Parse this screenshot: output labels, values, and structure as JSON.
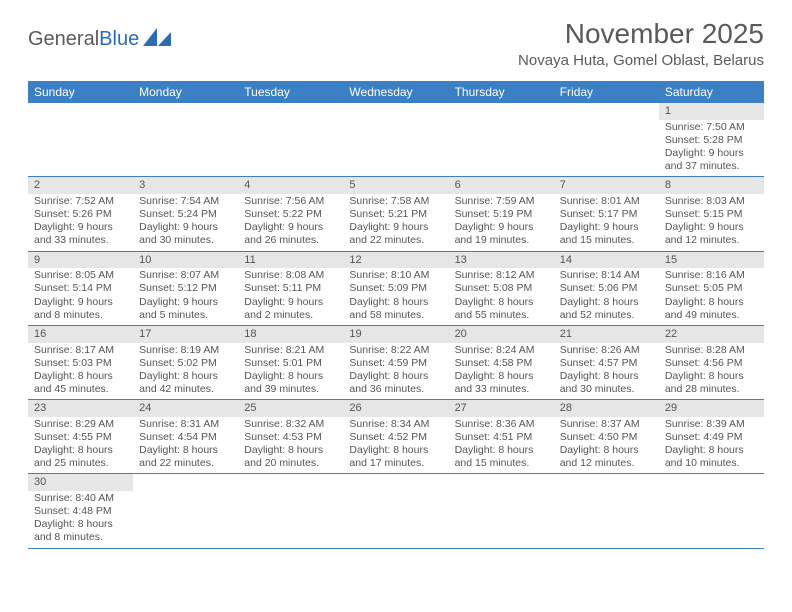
{
  "logo": {
    "general": "General",
    "blue": "Blue"
  },
  "title": "November 2025",
  "location": "Novaya Huta, Gomel Oblast, Belarus",
  "colors": {
    "header_bg": "#3b7fc4",
    "header_text": "#ffffff",
    "daynum_bg": "#e6e6e6",
    "text": "#555555",
    "rule": "#3b7fc4",
    "logo_blue": "#2a6db3"
  },
  "day_headers": [
    "Sunday",
    "Monday",
    "Tuesday",
    "Wednesday",
    "Thursday",
    "Friday",
    "Saturday"
  ],
  "weeks": [
    {
      "nums": [
        "",
        "",
        "",
        "",
        "",
        "",
        "1"
      ],
      "cells": [
        "",
        "",
        "",
        "",
        "",
        "",
        "Sunrise: 7:50 AM\nSunset: 5:28 PM\nDaylight: 9 hours and 37 minutes."
      ]
    },
    {
      "nums": [
        "2",
        "3",
        "4",
        "5",
        "6",
        "7",
        "8"
      ],
      "cells": [
        "Sunrise: 7:52 AM\nSunset: 5:26 PM\nDaylight: 9 hours and 33 minutes.",
        "Sunrise: 7:54 AM\nSunset: 5:24 PM\nDaylight: 9 hours and 30 minutes.",
        "Sunrise: 7:56 AM\nSunset: 5:22 PM\nDaylight: 9 hours and 26 minutes.",
        "Sunrise: 7:58 AM\nSunset: 5:21 PM\nDaylight: 9 hours and 22 minutes.",
        "Sunrise: 7:59 AM\nSunset: 5:19 PM\nDaylight: 9 hours and 19 minutes.",
        "Sunrise: 8:01 AM\nSunset: 5:17 PM\nDaylight: 9 hours and 15 minutes.",
        "Sunrise: 8:03 AM\nSunset: 5:15 PM\nDaylight: 9 hours and 12 minutes."
      ]
    },
    {
      "nums": [
        "9",
        "10",
        "11",
        "12",
        "13",
        "14",
        "15"
      ],
      "cells": [
        "Sunrise: 8:05 AM\nSunset: 5:14 PM\nDaylight: 9 hours and 8 minutes.",
        "Sunrise: 8:07 AM\nSunset: 5:12 PM\nDaylight: 9 hours and 5 minutes.",
        "Sunrise: 8:08 AM\nSunset: 5:11 PM\nDaylight: 9 hours and 2 minutes.",
        "Sunrise: 8:10 AM\nSunset: 5:09 PM\nDaylight: 8 hours and 58 minutes.",
        "Sunrise: 8:12 AM\nSunset: 5:08 PM\nDaylight: 8 hours and 55 minutes.",
        "Sunrise: 8:14 AM\nSunset: 5:06 PM\nDaylight: 8 hours and 52 minutes.",
        "Sunrise: 8:16 AM\nSunset: 5:05 PM\nDaylight: 8 hours and 49 minutes."
      ]
    },
    {
      "nums": [
        "16",
        "17",
        "18",
        "19",
        "20",
        "21",
        "22"
      ],
      "cells": [
        "Sunrise: 8:17 AM\nSunset: 5:03 PM\nDaylight: 8 hours and 45 minutes.",
        "Sunrise: 8:19 AM\nSunset: 5:02 PM\nDaylight: 8 hours and 42 minutes.",
        "Sunrise: 8:21 AM\nSunset: 5:01 PM\nDaylight: 8 hours and 39 minutes.",
        "Sunrise: 8:22 AM\nSunset: 4:59 PM\nDaylight: 8 hours and 36 minutes.",
        "Sunrise: 8:24 AM\nSunset: 4:58 PM\nDaylight: 8 hours and 33 minutes.",
        "Sunrise: 8:26 AM\nSunset: 4:57 PM\nDaylight: 8 hours and 30 minutes.",
        "Sunrise: 8:28 AM\nSunset: 4:56 PM\nDaylight: 8 hours and 28 minutes."
      ]
    },
    {
      "nums": [
        "23",
        "24",
        "25",
        "26",
        "27",
        "28",
        "29"
      ],
      "cells": [
        "Sunrise: 8:29 AM\nSunset: 4:55 PM\nDaylight: 8 hours and 25 minutes.",
        "Sunrise: 8:31 AM\nSunset: 4:54 PM\nDaylight: 8 hours and 22 minutes.",
        "Sunrise: 8:32 AM\nSunset: 4:53 PM\nDaylight: 8 hours and 20 minutes.",
        "Sunrise: 8:34 AM\nSunset: 4:52 PM\nDaylight: 8 hours and 17 minutes.",
        "Sunrise: 8:36 AM\nSunset: 4:51 PM\nDaylight: 8 hours and 15 minutes.",
        "Sunrise: 8:37 AM\nSunset: 4:50 PM\nDaylight: 8 hours and 12 minutes.",
        "Sunrise: 8:39 AM\nSunset: 4:49 PM\nDaylight: 8 hours and 10 minutes."
      ]
    },
    {
      "nums": [
        "30",
        "",
        "",
        "",
        "",
        "",
        ""
      ],
      "cells": [
        "Sunrise: 8:40 AM\nSunset: 4:48 PM\nDaylight: 8 hours and 8 minutes.",
        "",
        "",
        "",
        "",
        "",
        ""
      ]
    }
  ]
}
